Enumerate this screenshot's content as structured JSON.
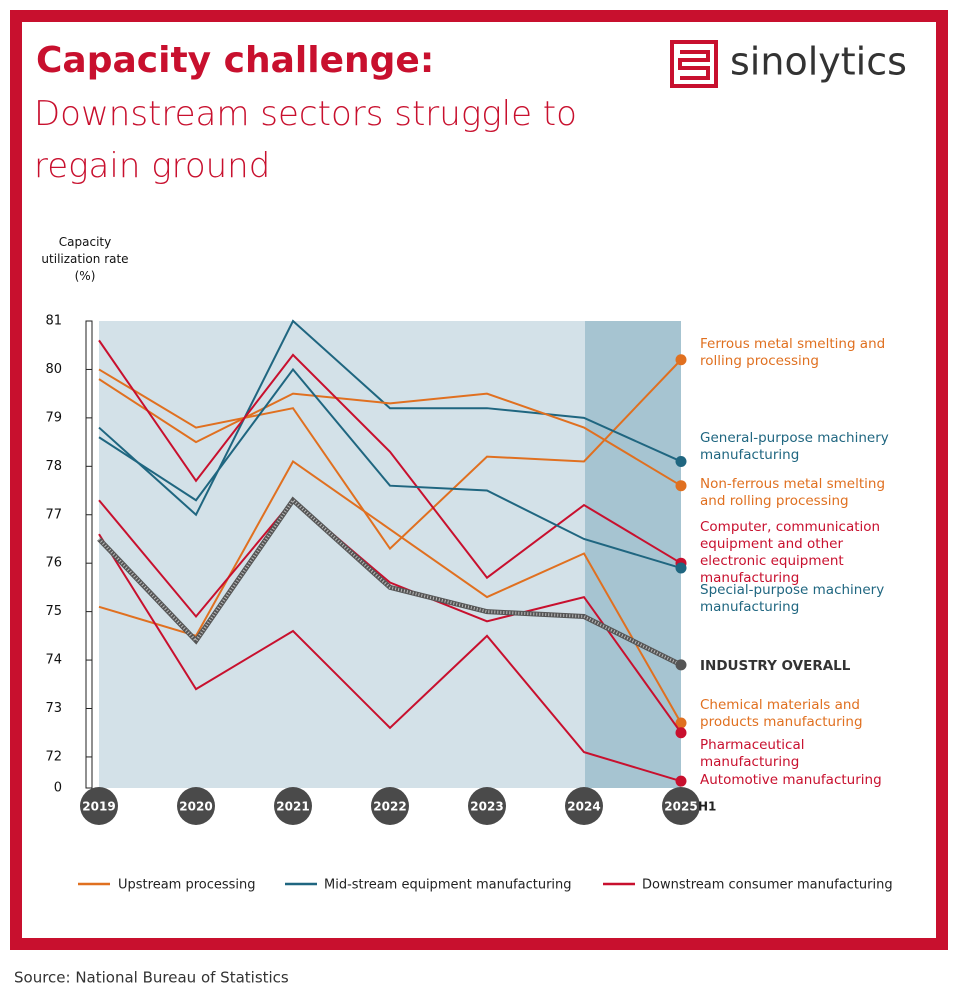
{
  "title": "Capacity challenge:",
  "subtitle": "Downstream sectors struggle to regain ground",
  "brand": "sinolytics",
  "source": "Source: National Bureau of Statistics",
  "chart_data": {
    "type": "line",
    "y_label": "Capacity utilization rate (%)",
    "categories": [
      "2019",
      "2020",
      "2021",
      "2022",
      "2023",
      "2024",
      "2025"
    ],
    "x_note": "H1",
    "ylim": [
      71.4,
      81
    ],
    "yticks": [
      81,
      80,
      79,
      78,
      77,
      76,
      75,
      74,
      73,
      72
    ],
    "y_bottom_label": "0",
    "grid": false,
    "legend": [
      {
        "name": "Upstream processing",
        "color": "#e07020"
      },
      {
        "name": "Mid-stream equipment manufacturing",
        "color": "#1f6680"
      },
      {
        "name": "Downstream consumer manufacturing",
        "color": "#c8102e"
      }
    ],
    "series": [
      {
        "name": "Ferrous metal smelting and rolling processing",
        "color": "#e07020",
        "values": [
          80.0,
          78.8,
          79.2,
          76.3,
          78.2,
          78.1,
          80.2
        ]
      },
      {
        "name": "General-purpose machinery manufacturing",
        "color": "#1f6680",
        "values": [
          78.8,
          77.0,
          81.0,
          79.2,
          79.2,
          79.0,
          78.1
        ]
      },
      {
        "name": "Non-ferrous metal smelting and rolling processing",
        "color": "#e07020",
        "values": [
          79.8,
          78.5,
          79.5,
          79.3,
          79.5,
          78.8,
          77.6
        ]
      },
      {
        "name": "Computer, communication equipment and other electronic equipment manufacturing",
        "color": "#c8102e",
        "values": [
          80.6,
          77.7,
          80.3,
          78.3,
          75.7,
          77.2,
          76.0
        ]
      },
      {
        "name": "Special-purpose machinery manufacturing",
        "color": "#1f6680",
        "values": [
          78.6,
          77.3,
          80.0,
          77.6,
          77.5,
          76.5,
          75.9
        ]
      },
      {
        "name": "INDUSTRY OVERALL",
        "color": "#555555",
        "values": [
          76.5,
          74.4,
          77.3,
          75.5,
          75.0,
          74.9,
          73.9
        ]
      },
      {
        "name": "Chemical materials and products manufacturing",
        "color": "#e07020",
        "values": [
          75.1,
          74.5,
          78.1,
          76.7,
          75.3,
          76.2,
          72.7
        ]
      },
      {
        "name": "Pharmaceutical manufacturing",
        "color": "#c8102e",
        "values": [
          77.3,
          74.9,
          77.3,
          75.6,
          74.8,
          75.3,
          72.5
        ]
      },
      {
        "name": "Automotive manufacturing",
        "color": "#c8102e",
        "values": [
          76.6,
          73.4,
          74.6,
          72.6,
          74.5,
          72.1,
          71.5
        ]
      }
    ]
  }
}
